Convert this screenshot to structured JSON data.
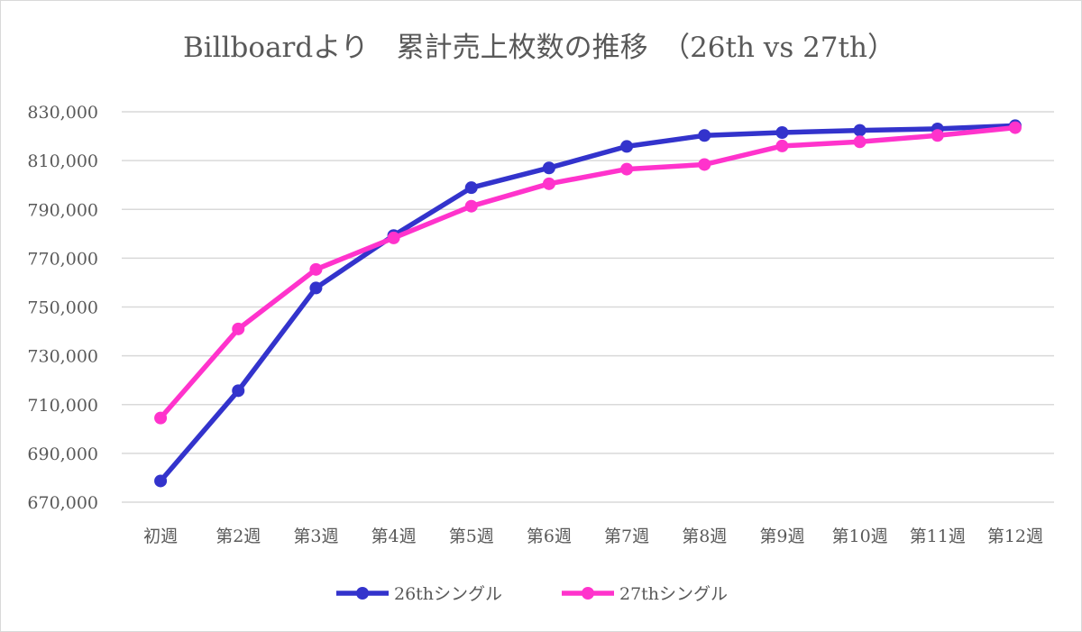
{
  "chart_data": {
    "type": "line",
    "title": "Billboardより　累計売上枚数の推移　（26th vs 27th）",
    "xlabel": "",
    "ylabel": "",
    "categories": [
      "初週",
      "第2週",
      "第3週",
      "第4週",
      "第5週",
      "第6週",
      "第7週",
      "第8週",
      "第9週",
      "第10週",
      "第11週",
      "第12週"
    ],
    "y_ticks": [
      "670,000",
      "690,000",
      "710,000",
      "730,000",
      "750,000",
      "770,000",
      "790,000",
      "810,000",
      "830,000"
    ],
    "ylim": [
      670000,
      830000
    ],
    "grid": true,
    "legend_position": "bottom",
    "series": [
      {
        "name": "26thシングル",
        "color": "#3333cc",
        "values": [
          678700,
          715700,
          757800,
          779300,
          798900,
          807000,
          815800,
          820300,
          821500,
          822400,
          823000,
          824300
        ]
      },
      {
        "name": "27thシングル",
        "color": "#ff33cc",
        "values": [
          704500,
          741000,
          765400,
          778300,
          791300,
          800500,
          806500,
          808400,
          816000,
          817700,
          820300,
          823500
        ]
      }
    ]
  }
}
